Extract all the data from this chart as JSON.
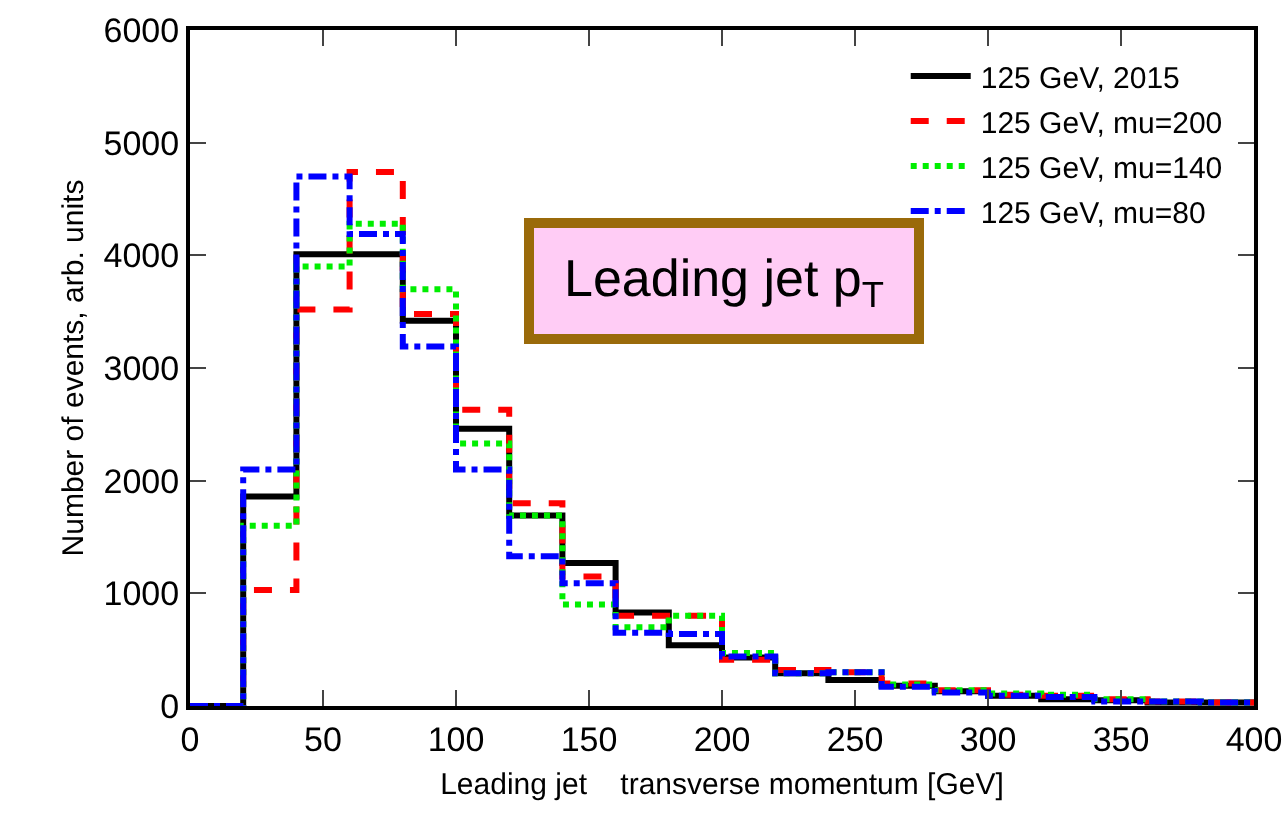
{
  "chart_data": {
    "type": "histogram",
    "xlabel": "Leading jet    transverse momentum [GeV]",
    "ylabel": "Number of events, arb. units",
    "bins": [
      0,
      20,
      40,
      60,
      80,
      100,
      120,
      140,
      160,
      180,
      200,
      220,
      240,
      260,
      280,
      300,
      320,
      340,
      360,
      380,
      400
    ],
    "series": [
      {
        "name": "125 GeV, 2015",
        "color": "#000000",
        "line_style": "solid",
        "values": [
          0,
          1860,
          4010,
          4010,
          3420,
          2460,
          1690,
          1270,
          830,
          540,
          430,
          290,
          230,
          180,
          130,
          90,
          60,
          50,
          30,
          30
        ]
      },
      {
        "name": "125 GeV, mu=200",
        "color": "#ff0000",
        "line_style": "dashed",
        "values": [
          0,
          1030,
          3520,
          4740,
          3480,
          2630,
          1800,
          1150,
          800,
          800,
          410,
          320,
          300,
          200,
          140,
          100,
          90,
          60,
          40,
          30
        ]
      },
      {
        "name": "125 GeV, mu=140",
        "color": "#00ee00",
        "line_style": "dotted",
        "values": [
          0,
          1600,
          3900,
          4280,
          3700,
          2330,
          1690,
          900,
          700,
          800,
          470,
          290,
          300,
          190,
          140,
          110,
          100,
          60,
          40,
          30
        ]
      },
      {
        "name": "125 GeV, mu=80",
        "color": "#0000ff",
        "line_style": "dashdot",
        "values": [
          0,
          2100,
          4700,
          4190,
          3190,
          2100,
          1330,
          1090,
          650,
          640,
          440,
          290,
          300,
          170,
          120,
          90,
          80,
          40,
          40,
          30
        ]
      }
    ],
    "xlim": [
      0,
      400
    ],
    "xticks": [
      0,
      50,
      100,
      150,
      200,
      250,
      300,
      350,
      400
    ],
    "ylim": [
      0,
      6000
    ],
    "yticks": [
      0,
      1000,
      2000,
      3000,
      4000,
      5000,
      6000
    ],
    "grid": false,
    "legend": "top right",
    "annotations": [
      "Leading jet p$_{T}$"
    ]
  }
}
